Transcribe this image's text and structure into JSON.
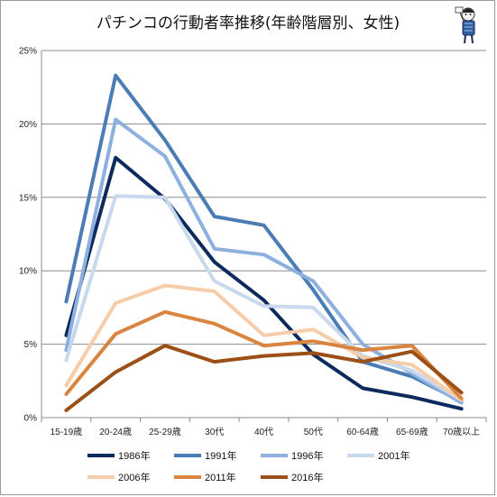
{
  "chart_data": {
    "type": "line",
    "title": "パチンコの行動者率推移(年齢階層別、女性)",
    "xlabel": "",
    "ylabel": "",
    "categories": [
      "15-19歳",
      "20-24歳",
      "25-29歳",
      "30代",
      "40代",
      "50代",
      "60-64歳",
      "65-69歳",
      "70歳以上"
    ],
    "ylim": [
      0,
      25
    ],
    "yticks": [
      0,
      5,
      10,
      15,
      20,
      25
    ],
    "ytick_labels": [
      "0%",
      "5%",
      "10%",
      "15%",
      "20%",
      "25%"
    ],
    "grid": true,
    "legend_position": "bottom",
    "series": [
      {
        "name": "1986年",
        "color": "#0d2a5e",
        "values": [
          5.6,
          17.7,
          14.9,
          10.6,
          8.0,
          4.3,
          2.0,
          1.4,
          0.6
        ]
      },
      {
        "name": "1991年",
        "color": "#4a7db5",
        "values": [
          7.9,
          23.3,
          18.9,
          13.7,
          13.1,
          8.7,
          3.8,
          2.8,
          1.1
        ]
      },
      {
        "name": "1996年",
        "color": "#8db0df",
        "values": [
          4.6,
          20.3,
          17.8,
          11.5,
          11.1,
          9.3,
          5.0,
          3.0,
          1.0
        ]
      },
      {
        "name": "2001年",
        "color": "#c8d9ee",
        "values": [
          3.9,
          15.1,
          15.0,
          9.3,
          7.6,
          7.5,
          4.2,
          3.2,
          1.2
        ]
      },
      {
        "name": "2006年",
        "color": "#f7cca8",
        "values": [
          2.2,
          7.8,
          9.0,
          8.6,
          5.6,
          6.0,
          4.1,
          3.6,
          1.2
        ]
      },
      {
        "name": "2011年",
        "color": "#d9853f",
        "values": [
          1.6,
          5.7,
          7.2,
          6.4,
          4.9,
          5.2,
          4.6,
          4.9,
          1.3
        ]
      },
      {
        "name": "2016年",
        "color": "#9c4f16",
        "values": [
          0.5,
          3.1,
          4.9,
          3.8,
          4.2,
          4.4,
          3.8,
          4.5,
          1.7
        ]
      }
    ]
  },
  "mascot": {
    "icon": "chibi-mascot-icon"
  }
}
